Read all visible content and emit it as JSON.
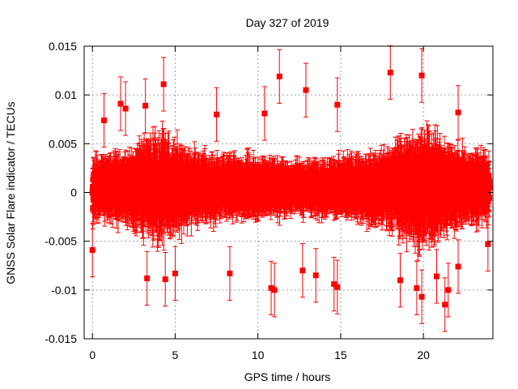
{
  "chart_data": {
    "type": "scatter",
    "title": "Day 327 of 2019",
    "xlabel": "GPS time / hours",
    "ylabel": "GNSS Solar Flare indicator / TECUs",
    "xlim": [
      -0.5,
      24.2
    ],
    "ylim": [
      -0.015,
      0.015
    ],
    "xticks": [
      0,
      5,
      10,
      15,
      20
    ],
    "xtick_labels": [
      "0",
      "5",
      "10",
      "15",
      "20"
    ],
    "yticks": [
      -0.015,
      -0.01,
      -0.005,
      0,
      0.005,
      0.01,
      0.015
    ],
    "ytick_labels": [
      "-0.015",
      "-0.01",
      "-0.005",
      "0",
      "0.005",
      "0.01",
      "0.015"
    ],
    "grid": true,
    "series": [
      {
        "name": "indicator",
        "color": "#ff0000",
        "marker": "square",
        "x_range": [
          0,
          24
        ],
        "sample_interval_hours": 0.00833,
        "typical_spread": 0.0035,
        "typical_error": 0.0025,
        "outliers": [
          {
            "x": 0.0,
            "y": -0.0059
          },
          {
            "x": 0.7,
            "y": 0.0074
          },
          {
            "x": 1.7,
            "y": 0.0091
          },
          {
            "x": 2.0,
            "y": 0.0086
          },
          {
            "x": 3.2,
            "y": 0.0089
          },
          {
            "x": 3.3,
            "y": -0.0088
          },
          {
            "x": 4.3,
            "y": 0.0111
          },
          {
            "x": 4.4,
            "y": -0.0089
          },
          {
            "x": 5.0,
            "y": -0.0083
          },
          {
            "x": 7.5,
            "y": 0.008
          },
          {
            "x": 8.3,
            "y": -0.0083
          },
          {
            "x": 10.4,
            "y": 0.0081
          },
          {
            "x": 10.8,
            "y": -0.0098
          },
          {
            "x": 11.0,
            "y": -0.01
          },
          {
            "x": 11.3,
            "y": 0.0119
          },
          {
            "x": 12.7,
            "y": -0.008
          },
          {
            "x": 12.9,
            "y": 0.0105
          },
          {
            "x": 13.5,
            "y": -0.0085
          },
          {
            "x": 14.6,
            "y": -0.0094
          },
          {
            "x": 14.8,
            "y": -0.0097
          },
          {
            "x": 14.8,
            "y": 0.009
          },
          {
            "x": 18.0,
            "y": 0.0123
          },
          {
            "x": 18.6,
            "y": -0.009
          },
          {
            "x": 19.6,
            "y": -0.0098
          },
          {
            "x": 19.9,
            "y": 0.012
          },
          {
            "x": 19.9,
            "y": -0.0107
          },
          {
            "x": 20.8,
            "y": -0.0086
          },
          {
            "x": 21.3,
            "y": -0.0115
          },
          {
            "x": 21.5,
            "y": -0.01
          },
          {
            "x": 22.1,
            "y": -0.0076
          },
          {
            "x": 22.1,
            "y": 0.0082
          },
          {
            "x": 23.9,
            "y": -0.0053
          }
        ]
      }
    ]
  }
}
